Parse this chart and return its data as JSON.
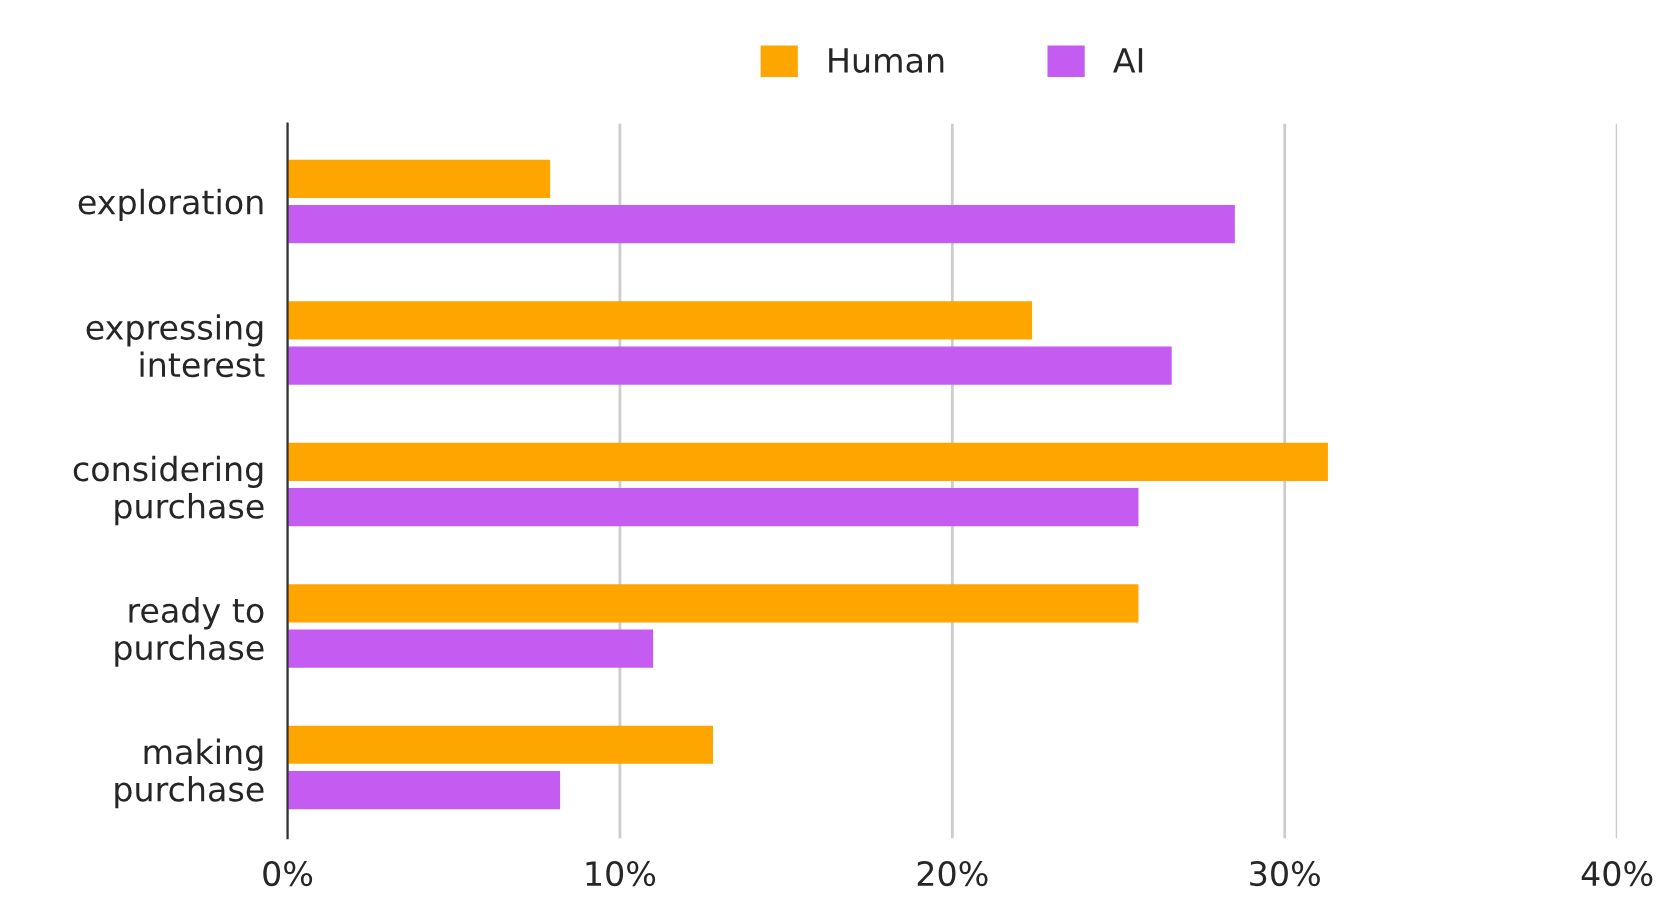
{
  "chart_data": {
    "type": "bar",
    "orientation": "horizontal",
    "categories": [
      "exploration",
      "expressing interest",
      "considering purchase",
      "ready to purchase",
      "making purchase"
    ],
    "series": [
      {
        "name": "Human",
        "color": "#ffa500",
        "values": [
          7.9,
          22.4,
          31.3,
          25.6,
          12.8
        ]
      },
      {
        "name": "AI",
        "color": "#c45cf2",
        "values": [
          28.5,
          26.6,
          25.6,
          11.0,
          8.2
        ]
      }
    ],
    "xlim": [
      0,
      40
    ],
    "xticks": [
      {
        "value": 0,
        "label": "0%"
      },
      {
        "value": 10,
        "label": "10%"
      },
      {
        "value": 20,
        "label": "20%"
      },
      {
        "value": 30,
        "label": "30%"
      },
      {
        "value": 40,
        "label": "40%"
      }
    ],
    "grid": "x",
    "legend": "top"
  }
}
